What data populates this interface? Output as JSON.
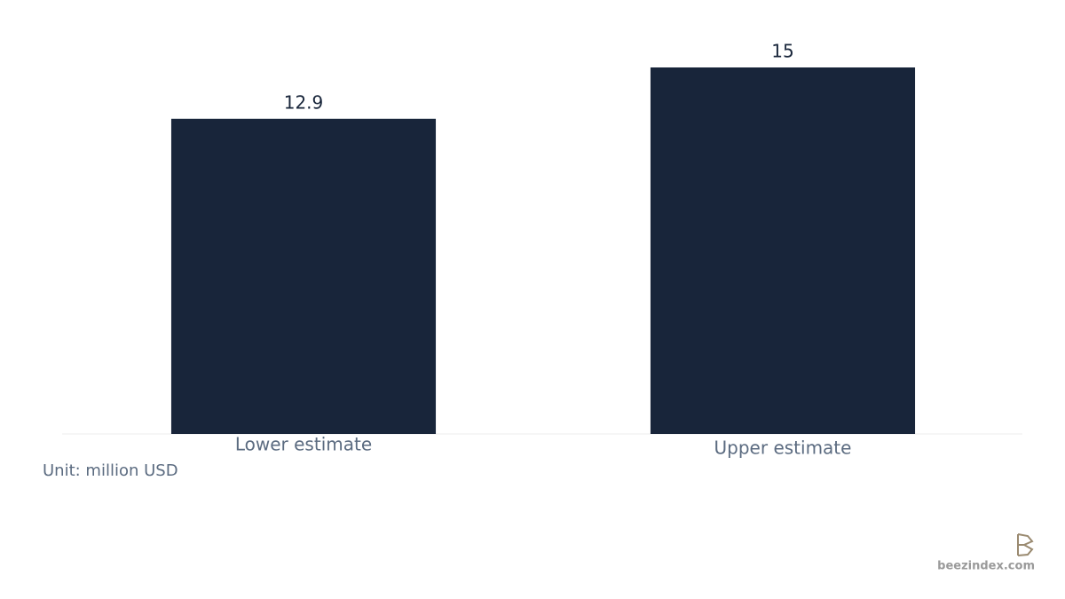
{
  "chart_data": {
    "type": "bar",
    "categories": [
      "Lower estimate",
      "Upper estimate"
    ],
    "values": [
      12.9,
      15
    ],
    "color": "#18253a",
    "unit_note": "Unit: million USD",
    "watermark": "beezindex.com"
  }
}
